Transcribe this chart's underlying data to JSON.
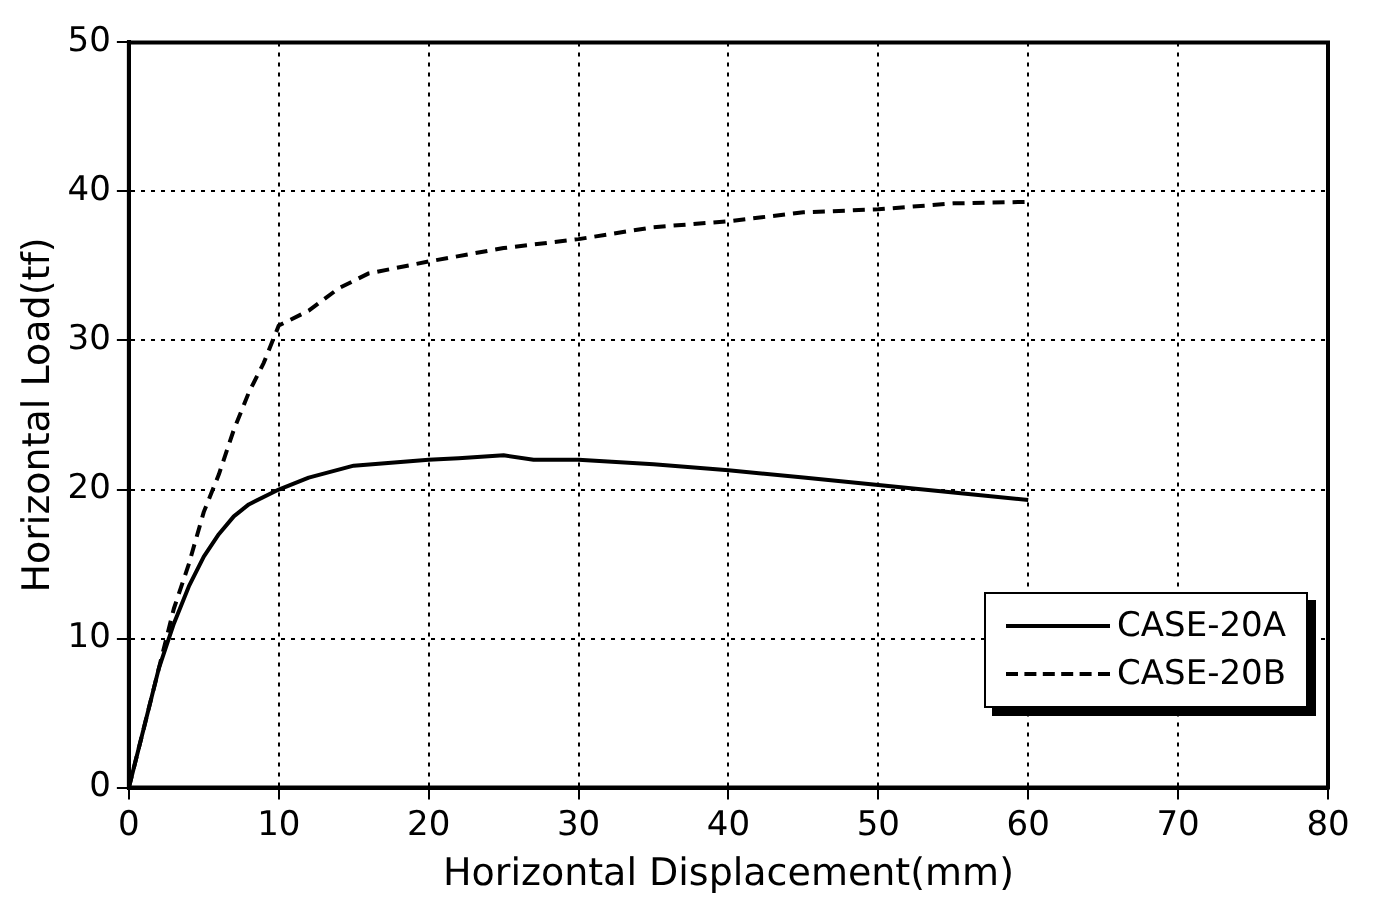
{
  "chart_data": {
    "type": "line",
    "xlabel": "Horizontal Displacement(mm)",
    "ylabel": "Horizontal Load(tf)",
    "xlim": [
      0,
      80
    ],
    "xticks": [
      0,
      10,
      20,
      30,
      40,
      50,
      60,
      70,
      80
    ],
    "ylim": [
      0,
      50
    ],
    "yticks": [
      0,
      10,
      20,
      30,
      40,
      50
    ],
    "grid": true,
    "legend": "bottom right",
    "marker": "none",
    "series": [
      {
        "name": "CASE-20A",
        "color": "#000000",
        "line_style": "solid",
        "x": [
          0,
          1,
          2,
          3,
          4,
          5,
          6,
          7,
          8,
          10,
          12,
          15,
          20,
          22,
          25,
          27,
          30,
          35,
          40,
          45,
          50,
          55,
          60
        ],
        "values": [
          0,
          4,
          8,
          11,
          13.5,
          15.5,
          17,
          18.2,
          19,
          20,
          20.8,
          21.6,
          22,
          22.1,
          22.3,
          22,
          22,
          21.7,
          21.3,
          20.8,
          20.3,
          19.8,
          19.3
        ]
      },
      {
        "name": "CASE-20B",
        "color": "#000000",
        "line_style": "dashed",
        "x": [
          0,
          2,
          3,
          4,
          5,
          6,
          7,
          8,
          9,
          10,
          12,
          14,
          16,
          20,
          25,
          30,
          35,
          40,
          45,
          50,
          55,
          60
        ],
        "values": [
          0,
          8,
          12,
          15,
          18.5,
          21,
          24,
          26.5,
          28.5,
          31,
          32,
          33.5,
          34.5,
          35.3,
          36.2,
          36.8,
          37.6,
          38,
          38.6,
          38.8,
          39.2,
          39.3
        ]
      }
    ]
  }
}
